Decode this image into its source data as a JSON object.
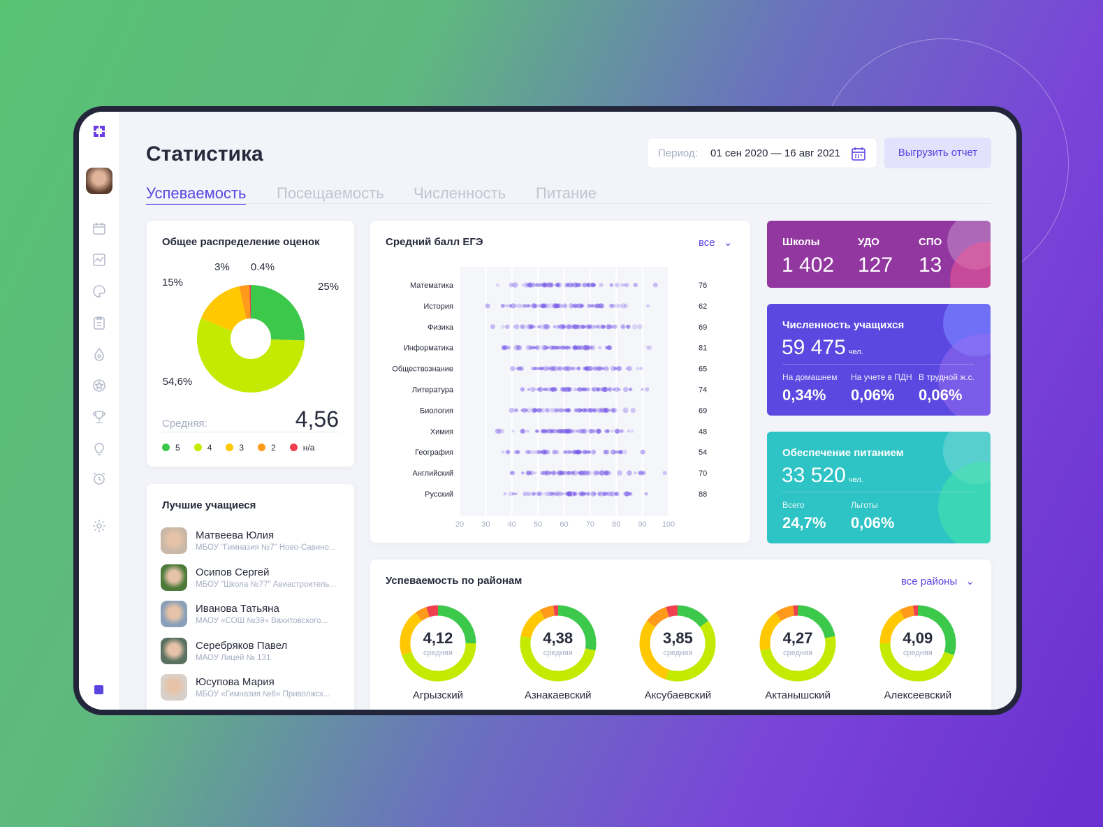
{
  "header": {
    "title": "Статистика",
    "period_label": "Период:",
    "period_value": "01 сен 2020 — 16 авг 2021",
    "export_button": "Выгрузить отчет"
  },
  "tabs": [
    {
      "label": "Успеваемость",
      "active": true
    },
    {
      "label": "Посещаемость"
    },
    {
      "label": "Численность"
    },
    {
      "label": "Питание"
    }
  ],
  "sidebar": {
    "icons": [
      "logo-icon",
      "avatar",
      "calendar-icon",
      "chart-icon",
      "palette-icon",
      "clipboard-icon",
      "drop-icon",
      "star-icon",
      "trophy-icon",
      "bulb-icon",
      "alarm-icon",
      "gear-icon"
    ]
  },
  "grades": {
    "title": "Общее распределение оценок",
    "avg_label": "Средняя:",
    "avg_value": "4,56",
    "slices": [
      {
        "name": "5",
        "label": "25%",
        "value": 25,
        "color": "#3cc84a"
      },
      {
        "name": "4",
        "label": "54,6%",
        "value": 54.6,
        "color": "#c3ea00"
      },
      {
        "name": "3",
        "label": "15%",
        "value": 15,
        "color": "#ffc800"
      },
      {
        "name": "2",
        "label": "3%",
        "value": 3,
        "color": "#ff9a1a"
      },
      {
        "name": "н/а",
        "label": "0.4%",
        "value": 0.4,
        "color": "#f0404f"
      }
    ]
  },
  "best": {
    "title": "Лучшие учащиеся",
    "students": [
      {
        "name": "Матвеева Юлия",
        "school": "МБОУ \"Гимназия №7\" Ново-Савино..."
      },
      {
        "name": "Осипов Сергей",
        "school": "МБОУ \"Школа №77\" Авиастроитель..."
      },
      {
        "name": "Иванова Татьяна",
        "school": "МАОУ «СОШ №39» Вахитовского..."
      },
      {
        "name": "Серебряков Павел",
        "school": "МАОУ Лицей № 131"
      },
      {
        "name": "Юсупова Мария",
        "school": "МБОУ «Гимназия №6» Приволжск..."
      }
    ]
  },
  "ege": {
    "filter": "все"
  },
  "chart_data": {
    "type": "scatter",
    "title": "Средний балл ЕГЭ",
    "xlim": [
      20,
      100
    ],
    "xticks": [
      "20",
      "30",
      "40",
      "50",
      "60",
      "70",
      "80",
      "90",
      "100"
    ],
    "categories": [
      "Математика",
      "История",
      "Физика",
      "Информатика",
      "Обществознание",
      "Литература",
      "Биология",
      "Химия",
      "География",
      "Английский",
      "Русский"
    ],
    "values": [
      76,
      62,
      69,
      81,
      65,
      74,
      69,
      48,
      54,
      70,
      88
    ]
  },
  "stats": {
    "orgs": {
      "items": [
        {
          "label": "Школы",
          "value": "1 402"
        },
        {
          "label": "УДО",
          "value": "127"
        },
        {
          "label": "СПО",
          "value": "13"
        }
      ]
    },
    "students": {
      "title": "Численность учащихся",
      "value": "59 475",
      "unit": "чел.",
      "items": [
        {
          "label": "На домашнем",
          "value": "0,34%"
        },
        {
          "label": "На учете в ПДН",
          "value": "0,06%"
        },
        {
          "label": "В трудной ж.с.",
          "value": "0,06%"
        }
      ]
    },
    "food": {
      "title": "Обеспечение питанием",
      "value": "33 520",
      "unit": "чел.",
      "items": [
        {
          "label": "Всего",
          "value": "24,7%"
        },
        {
          "label": "Льготы",
          "value": "0,06%"
        }
      ]
    }
  },
  "districts": {
    "title": "Успеваемость по районам",
    "filter": "все районы",
    "sub": "средняя",
    "items": [
      {
        "name": "Агрызский",
        "avg": "4,12",
        "parts": [
          25,
          45,
          20,
          5,
          5
        ]
      },
      {
        "name": "Азнакаевский",
        "avg": "4,38",
        "parts": [
          28,
          50,
          14,
          6,
          2
        ]
      },
      {
        "name": "Аксубаевский",
        "avg": "3,85",
        "parts": [
          15,
          40,
          30,
          10,
          5
        ]
      },
      {
        "name": "Актанышский",
        "avg": "4,27",
        "parts": [
          22,
          50,
          18,
          8,
          2
        ]
      },
      {
        "name": "Алексеевский",
        "avg": "4,09",
        "parts": [
          30,
          45,
          17,
          6,
          2
        ]
      }
    ]
  }
}
